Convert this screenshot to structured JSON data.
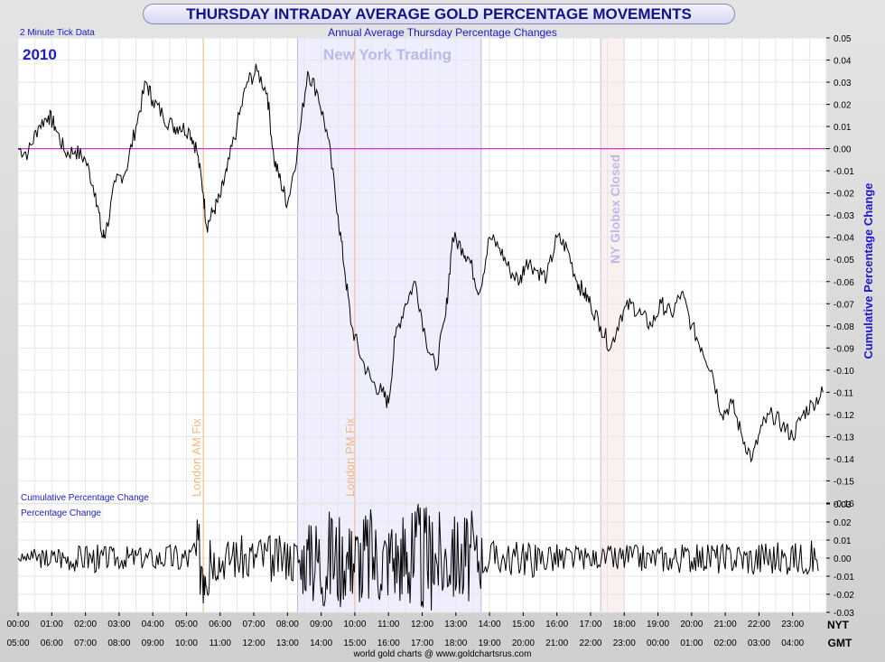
{
  "title": "THURSDAY INTRADAY AVERAGE GOLD PERCENTAGE MOVEMENTS",
  "subtitle": "Annual Average Thursday Percentage Changes",
  "tick_note": "2 Minute Tick Data",
  "year": "2010",
  "source": "world gold charts @ www.goldchartsrus.com",
  "nyt_label": "NYT",
  "gmt_label": "GMT",
  "top_panel_label": "Cumulative Percentage Change",
  "bottom_panel_label": "Percentage Change",
  "annotations": {
    "ny_trading": "New York Trading",
    "london_am": "London AM Fix",
    "london_pm": "London PM Fix",
    "globex_closed": "NY Globex Closed"
  },
  "colors": {
    "title": "#12128a",
    "blue_text": "#1a1acc",
    "zero_line": "#cc33cc",
    "ny_band": "#eeeeff",
    "fix_line": "#f2b779",
    "globex_band": "#fbf0f0",
    "series": "#000000"
  },
  "chart_data": [
    {
      "type": "line",
      "title": "Annual Average Thursday Percentage Changes",
      "ylabel": "Cumulative Percentage Change",
      "ylim": [
        -0.16,
        0.05
      ],
      "yticks": [
        "0.05",
        "0.04",
        "0.03",
        "0.02",
        "0.01",
        "0.00",
        "-0.01",
        "-0.02",
        "-0.03",
        "-0.04",
        "-0.05",
        "-0.06",
        "-0.07",
        "-0.08",
        "-0.09",
        "-0.10",
        "-0.11",
        "-0.12",
        "-0.13",
        "-0.14",
        "-0.15",
        "-0.16"
      ],
      "x_nyt": [
        "00:00",
        "01:00",
        "02:00",
        "03:00",
        "04:00",
        "05:00",
        "06:00",
        "07:00",
        "08:00",
        "09:00",
        "10:00",
        "11:00",
        "12:00",
        "13:00",
        "14:00",
        "15:00",
        "16:00",
        "17:00",
        "18:00",
        "19:00",
        "20:00",
        "21:00",
        "22:00",
        "23:00"
      ],
      "x_gmt": [
        "05:00",
        "06:00",
        "07:00",
        "08:00",
        "09:00",
        "10:00",
        "11:00",
        "12:00",
        "13:00",
        "14:00",
        "15:00",
        "16:00",
        "17:00",
        "18:00",
        "19:00",
        "20:00",
        "21:00",
        "22:00",
        "23:00",
        "00:00",
        "01:00",
        "02:00",
        "03:00",
        "04:00"
      ],
      "series": [
        {
          "name": "Cumulative Percentage Change",
          "x_hours": [
            0,
            0.3,
            0.6,
            0.9,
            1.1,
            1.4,
            1.7,
            2.0,
            2.3,
            2.5,
            2.6,
            2.9,
            3.2,
            3.5,
            3.8,
            4.0,
            4.3,
            4.6,
            4.8,
            5.1,
            5.3,
            5.5,
            5.6,
            5.8,
            6.0,
            6.2,
            6.5,
            6.8,
            7.1,
            7.4,
            7.6,
            7.8,
            8.0,
            8.3,
            8.6,
            8.9,
            9.2,
            9.5,
            9.7,
            9.9,
            10.2,
            10.5,
            10.8,
            11.0,
            11.2,
            11.5,
            11.8,
            12.1,
            12.4,
            12.7,
            12.9,
            13.2,
            13.4,
            13.7,
            14.0,
            14.3,
            14.6,
            14.9,
            15.1,
            15.4,
            15.7,
            16.0,
            16.3,
            16.6,
            16.8,
            17.0,
            17.3,
            17.6,
            17.9,
            18.2,
            18.5,
            18.8,
            19.1,
            19.4,
            19.7,
            20.0,
            20.3,
            20.6,
            20.9,
            21.2,
            21.5,
            21.8,
            22.1,
            22.4,
            22.7,
            23.0,
            23.3,
            23.6,
            23.9
          ],
          "values": [
            0.0,
            -0.002,
            0.01,
            0.015,
            0.01,
            -0.002,
            -0.001,
            -0.005,
            -0.02,
            -0.04,
            -0.038,
            -0.015,
            -0.01,
            0.01,
            0.03,
            0.022,
            0.015,
            0.01,
            0.01,
            0.008,
            0.0,
            -0.02,
            -0.035,
            -0.028,
            -0.022,
            -0.01,
            0.01,
            0.03,
            0.035,
            0.025,
            -0.005,
            -0.015,
            -0.025,
            0.0,
            0.035,
            0.025,
            0.005,
            -0.03,
            -0.055,
            -0.08,
            -0.095,
            -0.105,
            -0.11,
            -0.115,
            -0.085,
            -0.07,
            -0.06,
            -0.085,
            -0.1,
            -0.075,
            -0.04,
            -0.045,
            -0.05,
            -0.065,
            -0.04,
            -0.045,
            -0.055,
            -0.06,
            -0.05,
            -0.055,
            -0.058,
            -0.04,
            -0.045,
            -0.06,
            -0.065,
            -0.07,
            -0.08,
            -0.09,
            -0.075,
            -0.07,
            -0.075,
            -0.08,
            -0.07,
            -0.075,
            -0.065,
            -0.08,
            -0.09,
            -0.1,
            -0.12,
            -0.115,
            -0.13,
            -0.14,
            -0.125,
            -0.12,
            -0.125,
            -0.13,
            -0.12,
            -0.115,
            -0.11
          ]
        }
      ]
    },
    {
      "type": "line",
      "title": "Percentage Change",
      "ylim": [
        -0.03,
        0.03
      ],
      "yticks": [
        "0.03",
        "0.02",
        "0.01",
        "0.00",
        "-0.01",
        "-0.02",
        "-0.03"
      ],
      "series": [
        {
          "name": "Percentage Change",
          "x_hours": [
            0,
            0.4,
            0.8,
            1.2,
            1.6,
            2.0,
            2.4,
            2.8,
            3.2,
            3.6,
            4.0,
            4.4,
            4.8,
            5.2,
            5.5,
            5.7,
            6.0,
            6.4,
            6.8,
            7.2,
            7.6,
            8.0,
            8.4,
            8.7,
            9.0,
            9.3,
            9.6,
            9.9,
            10.2,
            10.5,
            10.8,
            11.1,
            11.4,
            11.7,
            12.0,
            12.3,
            12.6,
            12.9,
            13.2,
            13.5,
            13.8,
            14.2,
            14.6,
            15.0,
            15.4,
            15.8,
            16.2,
            16.6,
            17.0,
            17.4,
            17.8,
            18.2,
            18.6,
            19.0,
            19.4,
            19.8,
            20.2,
            20.6,
            21.0,
            21.4,
            21.8,
            22.2,
            22.6,
            23.0,
            23.4,
            23.8
          ],
          "values": [
            0.0,
            0.004,
            -0.004,
            0.005,
            -0.005,
            0.006,
            -0.006,
            0.004,
            -0.005,
            0.005,
            -0.004,
            0.006,
            -0.006,
            0.007,
            -0.025,
            0.01,
            -0.008,
            0.009,
            -0.009,
            0.01,
            -0.01,
            0.008,
            -0.012,
            0.018,
            -0.02,
            0.022,
            -0.018,
            0.015,
            -0.022,
            0.02,
            -0.018,
            0.016,
            -0.02,
            0.025,
            -0.024,
            0.02,
            -0.018,
            0.016,
            -0.02,
            0.018,
            -0.008,
            0.007,
            -0.006,
            0.008,
            -0.007,
            0.006,
            -0.006,
            0.005,
            -0.004,
            0.004,
            -0.006,
            0.006,
            -0.005,
            0.005,
            -0.006,
            0.006,
            -0.005,
            0.007,
            -0.006,
            0.006,
            -0.007,
            0.008,
            -0.006,
            0.007,
            -0.006,
            0.008
          ]
        }
      ]
    }
  ]
}
